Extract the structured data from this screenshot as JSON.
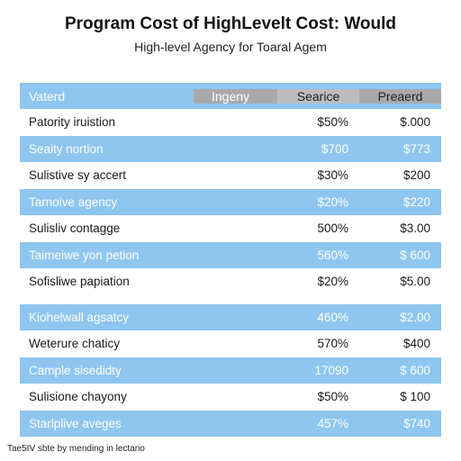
{
  "title": "Program Cost of HighLevelt Cost: Would",
  "subtitle": "High-level Agency for Toaral Agem",
  "footnote": "Tae5IV sbte by mending in lectario",
  "colors": {
    "row_blue": "#8ec6ef",
    "header_gray": "#a9a9a9",
    "header_light_gray": "#bdbdbd"
  },
  "chart_data": {
    "type": "table",
    "columns": [
      "Vaterd",
      "Ingeny",
      "Searice",
      "Preaerd"
    ],
    "rows": [
      [
        "Patority iruistion",
        "",
        "$50%",
        "$.000"
      ],
      [
        "Seaity nortion",
        "",
        "$700",
        "$773"
      ],
      [
        "Sulistive sy accert",
        "",
        "$30%",
        "$200"
      ],
      [
        "Tarnoive agency",
        "",
        "$20%",
        "$220"
      ],
      [
        "Sulisliv contagge",
        "",
        "500%",
        "$3.00"
      ],
      [
        "Taimeiwe yon petion",
        "",
        "560%",
        "$ 600"
      ],
      [
        "Sofisliwe papiation",
        "",
        "$20%",
        "$5.00"
      ],
      [
        "Kiohelwall agsatcy",
        "",
        "460%",
        "$2.00"
      ],
      [
        "Weterure chaticy",
        "",
        "570%",
        "$400"
      ],
      [
        "Cample sisedidty",
        "",
        "17090",
        "$ 600"
      ],
      [
        "Sulisione chayony",
        "",
        "$50%",
        "$ 100"
      ],
      [
        "Starlplive aveges",
        "",
        "457%",
        "$740"
      ]
    ]
  }
}
